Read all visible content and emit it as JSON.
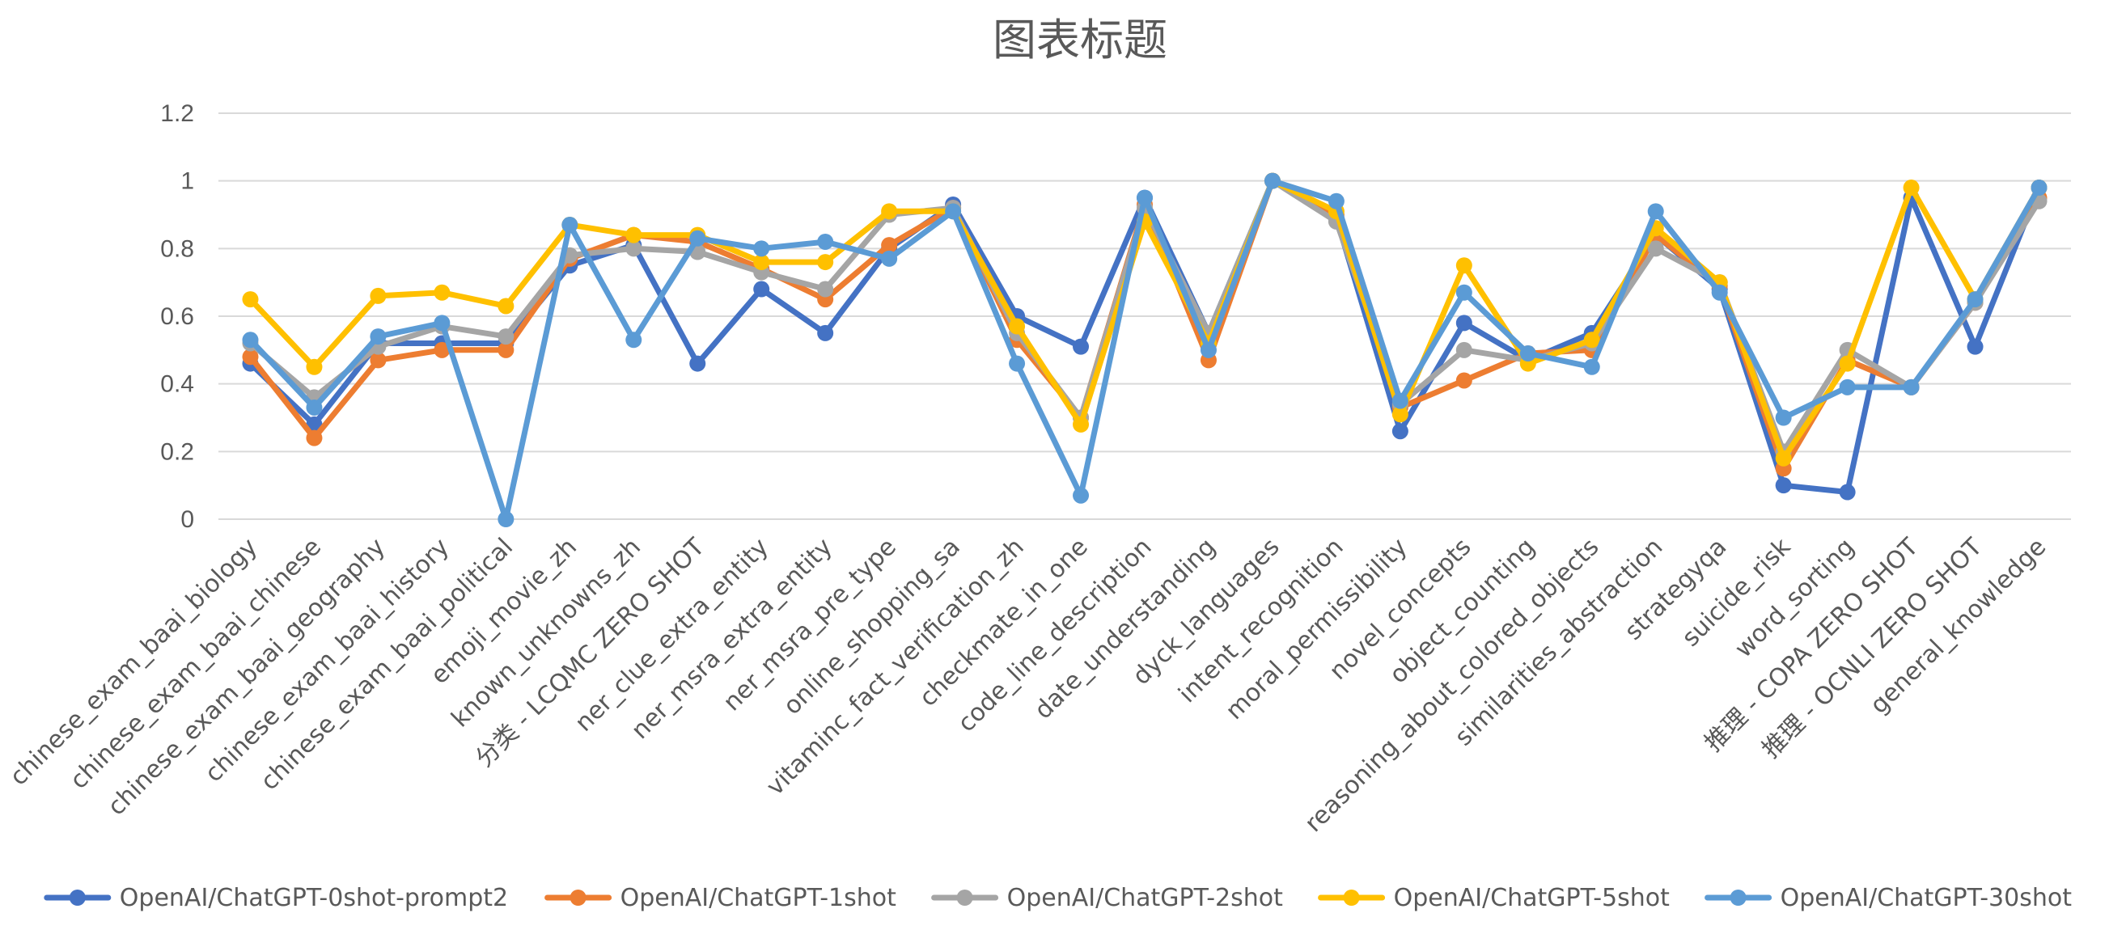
{
  "chart_data": {
    "type": "line",
    "title": "图表标题",
    "xlabel": "",
    "ylabel": "",
    "ylim": [
      0,
      1.2
    ],
    "yticks": [
      "0",
      "0.2",
      "0.4",
      "0.6",
      "0.8",
      "1",
      "1.2"
    ],
    "grid": true,
    "legend_position": "bottom",
    "categories": [
      "chinese_exam_baai_biology",
      "chinese_exam_baai_chinese",
      "chinese_exam_baai_geography",
      "chinese_exam_baai_history",
      "chinese_exam_baai_political",
      "emoji_movie_zh",
      "known_unknowns_zh",
      "分类 - LCQMC ZERO SHOT",
      "ner_clue_extra_entity",
      "ner_msra_extra_entity",
      "ner_msra_pre_type",
      "online_shopping_sa",
      "vitaminc_fact_verification_zh",
      "checkmate_in_one",
      "code_line_description",
      "date_understanding",
      "dyck_languages",
      "intent_recognition",
      "moral_permissibility",
      "novel_concepts",
      "object_counting",
      "reasoning_about_colored_objects",
      "similarities_abstraction",
      "strategyqa",
      "suicide_risk",
      "word_sorting",
      "推理 - COPA ZERO SHOT",
      "推理 - OCNLI ZERO SHOT",
      "general_knowledge"
    ],
    "series": [
      {
        "name": "OpenAI/ChatGPT-0shot-prompt2",
        "color": "#4472c4",
        "values": [
          0.46,
          0.28,
          0.52,
          0.52,
          0.52,
          0.75,
          0.81,
          0.46,
          0.68,
          0.55,
          0.8,
          0.93,
          0.6,
          0.51,
          0.95,
          0.55,
          1.0,
          0.89,
          0.26,
          0.58,
          0.47,
          0.55,
          0.84,
          0.68,
          0.1,
          0.08,
          0.95,
          0.51,
          0.98
        ]
      },
      {
        "name": "OpenAI/ChatGPT-1shot",
        "color": "#ed7d31",
        "values": [
          0.48,
          0.24,
          0.47,
          0.5,
          0.5,
          0.77,
          0.84,
          0.82,
          0.74,
          0.65,
          0.81,
          0.92,
          0.53,
          0.3,
          0.93,
          0.47,
          1.0,
          0.9,
          0.33,
          0.41,
          0.49,
          0.5,
          0.84,
          0.69,
          0.15,
          0.47,
          0.39,
          0.64,
          0.95
        ]
      },
      {
        "name": "OpenAI/ChatGPT-2shot",
        "color": "#a5a5a5",
        "values": [
          0.52,
          0.36,
          0.51,
          0.57,
          0.54,
          0.78,
          0.8,
          0.79,
          0.73,
          0.68,
          0.9,
          0.92,
          0.55,
          0.3,
          0.92,
          0.55,
          1.0,
          0.88,
          0.34,
          0.5,
          0.47,
          0.52,
          0.8,
          0.7,
          0.2,
          0.5,
          0.39,
          0.64,
          0.94
        ]
      },
      {
        "name": "OpenAI/ChatGPT-5shot",
        "color": "#ffc000",
        "values": [
          0.65,
          0.45,
          0.66,
          0.67,
          0.63,
          0.87,
          0.84,
          0.84,
          0.76,
          0.76,
          0.91,
          0.91,
          0.57,
          0.28,
          0.88,
          0.52,
          1.0,
          0.91,
          0.31,
          0.75,
          0.46,
          0.53,
          0.86,
          0.7,
          0.18,
          0.46,
          0.98,
          0.65,
          0.98
        ]
      },
      {
        "name": "OpenAI/ChatGPT-30shot",
        "color": "#5b9bd5",
        "values": [
          0.53,
          0.33,
          0.54,
          0.58,
          0.0,
          0.87,
          0.53,
          0.83,
          0.8,
          0.82,
          0.77,
          0.91,
          0.46,
          0.07,
          0.95,
          0.5,
          1.0,
          0.94,
          0.35,
          0.67,
          0.49,
          0.45,
          0.91,
          0.67,
          0.3,
          0.39,
          0.39,
          0.65,
          0.98
        ]
      }
    ]
  }
}
